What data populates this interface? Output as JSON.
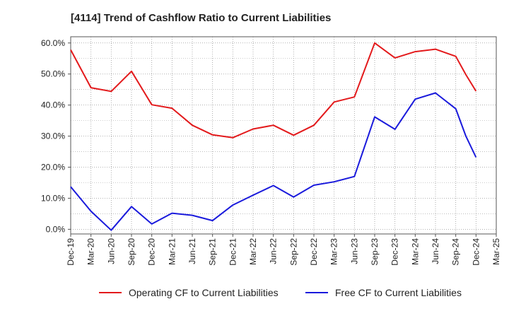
{
  "chart_data": {
    "type": "line",
    "title": "[4114]  Trend of Cashflow Ratio to Current Liabilities",
    "x": [
      "Dec-19",
      "Mar-20",
      "Jun-20",
      "Sep-20",
      "Dec-20",
      "Mar-21",
      "Jun-21",
      "Sep-21",
      "Dec-21",
      "Mar-22",
      "Jun-22",
      "Sep-22",
      "Dec-22",
      "Mar-23",
      "Jun-23",
      "Sep-23",
      "Dec-23",
      "Mar-24",
      "Jun-24",
      "Sep-24",
      "Dec-24",
      "Mar-25"
    ],
    "y_ticks": [
      "0.0%",
      "10.0%",
      "20.0%",
      "30.0%",
      "40.0%",
      "50.0%",
      "60.0%"
    ],
    "ylim": [
      -1.5,
      62
    ],
    "grid": true,
    "legend_position": "bottom",
    "series": [
      {
        "name": "Operating CF to Current Liabilities",
        "color": "#e31a1c",
        "points": [
          [
            0,
            57.8
          ],
          [
            1,
            45.6
          ],
          [
            2,
            44.4
          ],
          [
            3,
            50.9
          ],
          [
            4,
            40.1
          ],
          [
            5,
            39.0
          ],
          [
            6,
            33.5
          ],
          [
            7,
            30.4
          ],
          [
            8,
            29.5
          ],
          [
            9,
            32.3
          ],
          [
            10,
            33.5
          ],
          [
            11,
            30.3
          ],
          [
            12,
            33.5
          ],
          [
            13,
            41.0
          ],
          [
            14,
            42.6
          ],
          [
            15,
            60.0
          ],
          [
            16,
            55.2
          ],
          [
            17,
            57.2
          ],
          [
            18,
            58.0
          ],
          [
            19,
            55.7
          ],
          [
            19.5,
            49.8
          ],
          [
            20,
            44.5
          ]
        ]
      },
      {
        "name": "Free CF to Current Liabilities",
        "color": "#1a1adc",
        "points": [
          [
            0,
            13.7
          ],
          [
            1,
            5.8
          ],
          [
            2,
            -0.3
          ],
          [
            3,
            7.3
          ],
          [
            4,
            1.7
          ],
          [
            5,
            5.2
          ],
          [
            6,
            4.5
          ],
          [
            7,
            2.8
          ],
          [
            8,
            7.8
          ],
          [
            9,
            11.0
          ],
          [
            10,
            14.1
          ],
          [
            11,
            10.4
          ],
          [
            12,
            14.2
          ],
          [
            13,
            15.3
          ],
          [
            14,
            17.0
          ],
          [
            15,
            36.2
          ],
          [
            16,
            32.2
          ],
          [
            17,
            41.9
          ],
          [
            18,
            43.9
          ],
          [
            19,
            38.8
          ],
          [
            19.5,
            30.0
          ],
          [
            20,
            23.2
          ]
        ]
      }
    ]
  }
}
